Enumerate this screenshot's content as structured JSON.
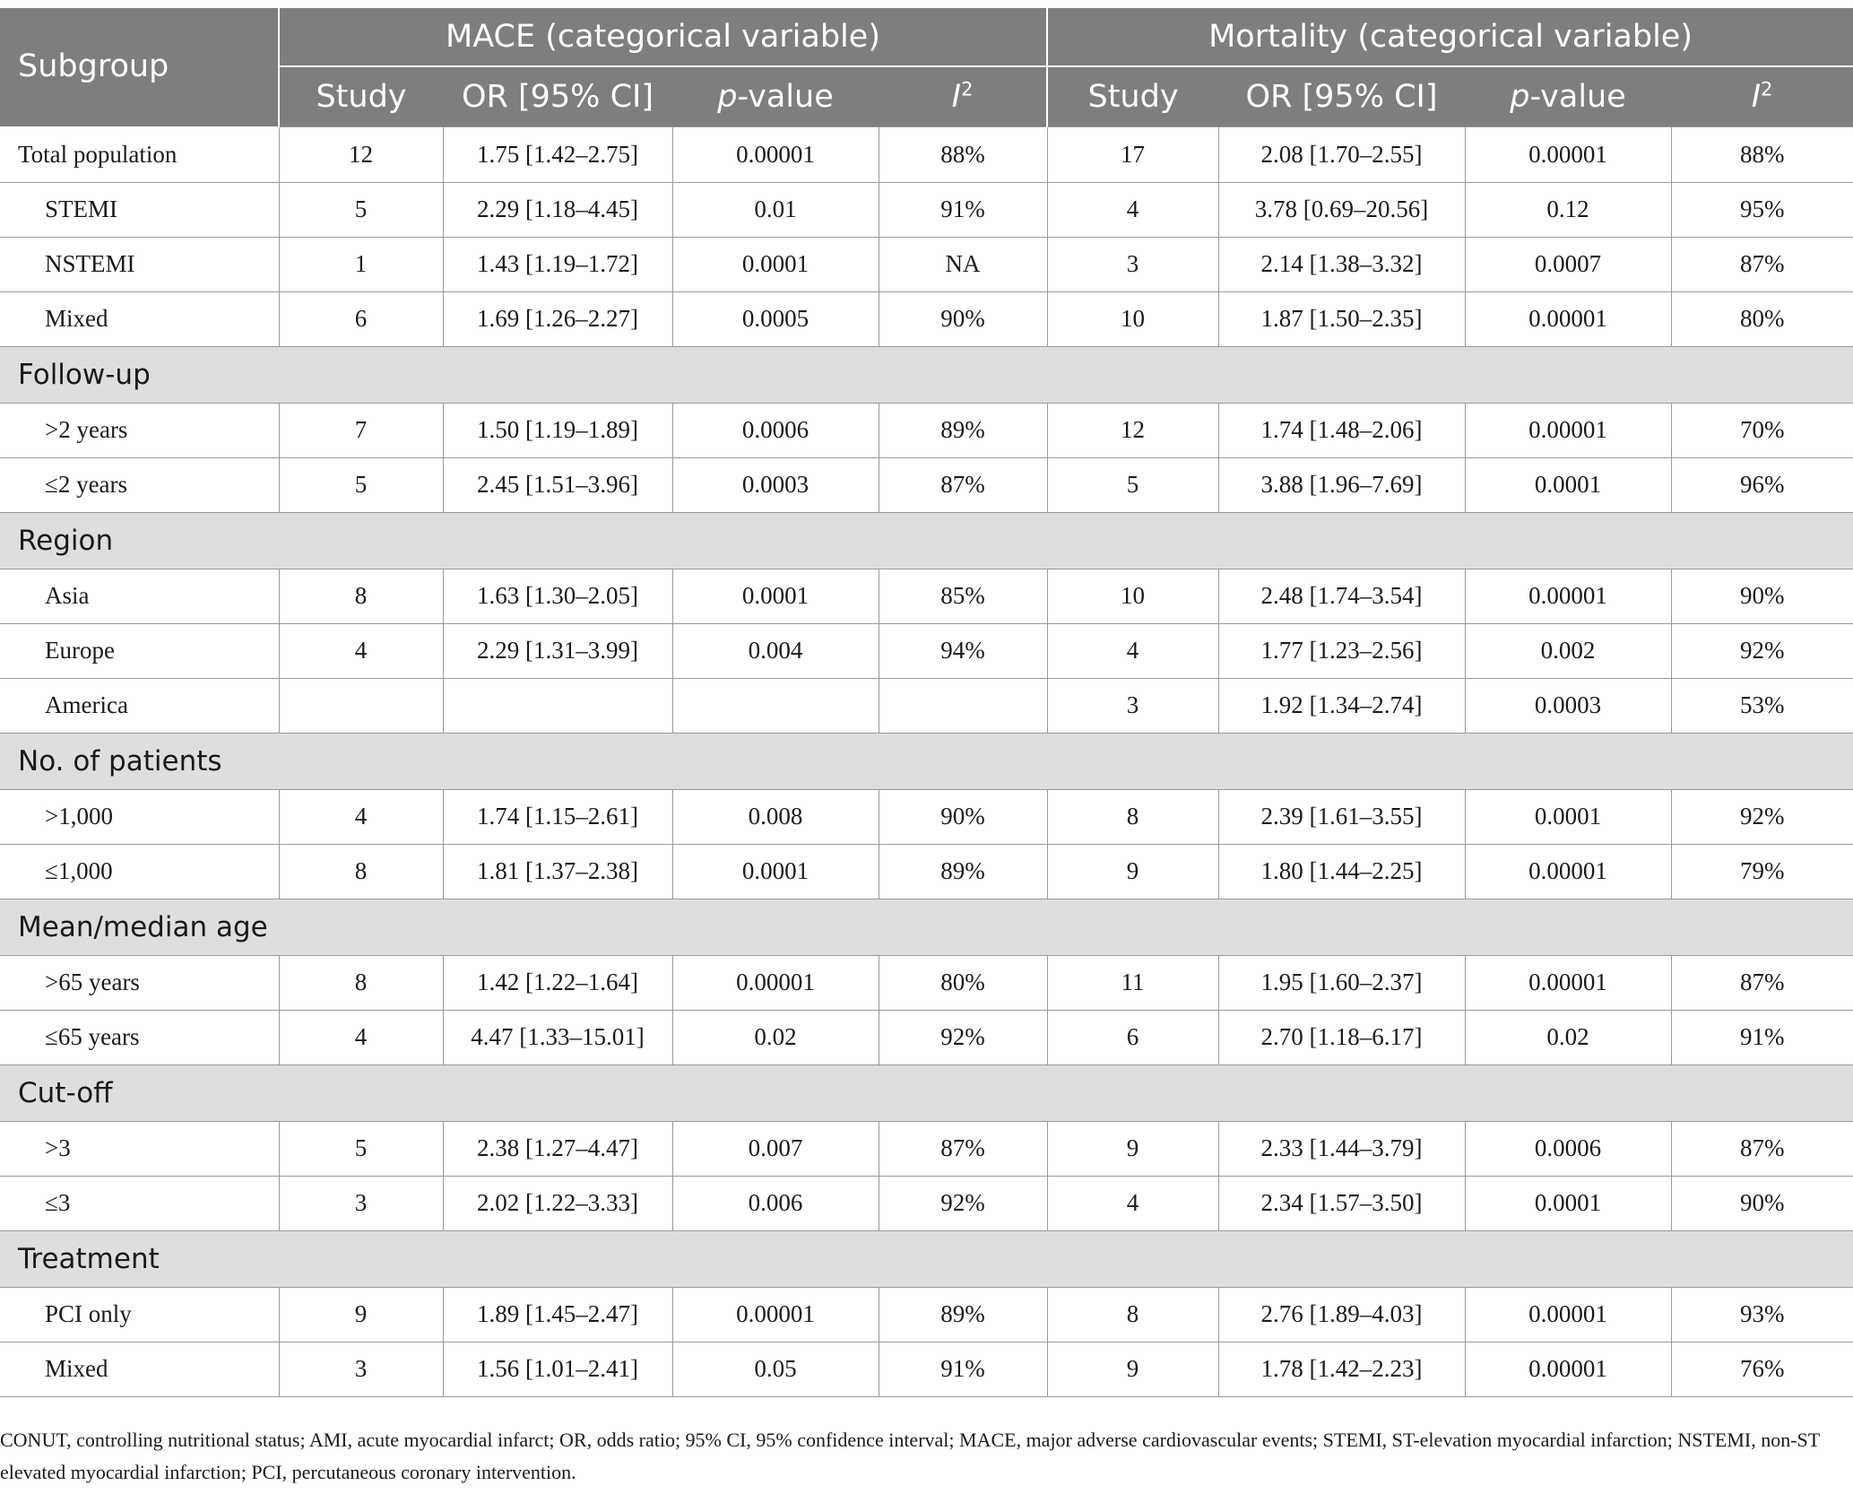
{
  "header": {
    "subgroup": "Subgroup",
    "mace_group": "MACE (categorical variable)",
    "mortality_group": "Mortality (categorical variable)",
    "col_study": "Study",
    "col_or": "OR [95% CI]",
    "col_p_italic": "p",
    "col_p_rest": "-value",
    "col_i_italic": "I",
    "col_i_sup": "2"
  },
  "rows": [
    {
      "type": "data",
      "indent": false,
      "label": "Total population",
      "mace_study": "12",
      "mace_or": "1.75 [1.42–2.75]",
      "mace_p": "0.00001",
      "mace_i2": "88%",
      "mort_study": "17",
      "mort_or": "2.08 [1.70–2.55]",
      "mort_p": "0.00001",
      "mort_i2": "88%"
    },
    {
      "type": "data",
      "indent": true,
      "label": "STEMI",
      "mace_study": "5",
      "mace_or": "2.29 [1.18–4.45]",
      "mace_p": "0.01",
      "mace_i2": "91%",
      "mort_study": "4",
      "mort_or": "3.78 [0.69–20.56]",
      "mort_p": "0.12",
      "mort_i2": "95%"
    },
    {
      "type": "data",
      "indent": true,
      "label": "NSTEMI",
      "mace_study": "1",
      "mace_or": "1.43 [1.19–1.72]",
      "mace_p": "0.0001",
      "mace_i2": "NA",
      "mort_study": "3",
      "mort_or": "2.14 [1.38–3.32]",
      "mort_p": "0.0007",
      "mort_i2": "87%"
    },
    {
      "type": "data",
      "indent": true,
      "label": "Mixed",
      "mace_study": "6",
      "mace_or": "1.69 [1.26–2.27]",
      "mace_p": "0.0005",
      "mace_i2": "90%",
      "mort_study": "10",
      "mort_or": "1.87 [1.50–2.35]",
      "mort_p": "0.00001",
      "mort_i2": "80%"
    },
    {
      "type": "section",
      "label": "Follow-up"
    },
    {
      "type": "data",
      "indent": true,
      "label": ">2 years",
      "mace_study": "7",
      "mace_or": "1.50 [1.19–1.89]",
      "mace_p": "0.0006",
      "mace_i2": "89%",
      "mort_study": "12",
      "mort_or": "1.74 [1.48–2.06]",
      "mort_p": "0.00001",
      "mort_i2": "70%"
    },
    {
      "type": "data",
      "indent": true,
      "label": "≤2 years",
      "mace_study": "5",
      "mace_or": "2.45 [1.51–3.96]",
      "mace_p": "0.0003",
      "mace_i2": "87%",
      "mort_study": "5",
      "mort_or": "3.88 [1.96–7.69]",
      "mort_p": "0.0001",
      "mort_i2": "96%"
    },
    {
      "type": "section",
      "label": "Region"
    },
    {
      "type": "data",
      "indent": true,
      "label": "Asia",
      "mace_study": "8",
      "mace_or": "1.63 [1.30–2.05]",
      "mace_p": "0.0001",
      "mace_i2": "85%",
      "mort_study": "10",
      "mort_or": "2.48 [1.74–3.54]",
      "mort_p": "0.00001",
      "mort_i2": "90%"
    },
    {
      "type": "data",
      "indent": true,
      "label": "Europe",
      "mace_study": "4",
      "mace_or": "2.29 [1.31–3.99]",
      "mace_p": "0.004",
      "mace_i2": "94%",
      "mort_study": "4",
      "mort_or": "1.77 [1.23–2.56]",
      "mort_p": "0.002",
      "mort_i2": "92%"
    },
    {
      "type": "data",
      "indent": true,
      "label": "America",
      "mace_study": "",
      "mace_or": "",
      "mace_p": "",
      "mace_i2": "",
      "mort_study": "3",
      "mort_or": "1.92 [1.34–2.74]",
      "mort_p": "0.0003",
      "mort_i2": "53%"
    },
    {
      "type": "section",
      "label": "No. of patients"
    },
    {
      "type": "data",
      "indent": true,
      "label": ">1,000",
      "mace_study": "4",
      "mace_or": "1.74 [1.15–2.61]",
      "mace_p": "0.008",
      "mace_i2": "90%",
      "mort_study": "8",
      "mort_or": "2.39 [1.61–3.55]",
      "mort_p": "0.0001",
      "mort_i2": "92%"
    },
    {
      "type": "data",
      "indent": true,
      "label": "≤1,000",
      "mace_study": "8",
      "mace_or": "1.81 [1.37–2.38]",
      "mace_p": "0.0001",
      "mace_i2": "89%",
      "mort_study": "9",
      "mort_or": "1.80 [1.44–2.25]",
      "mort_p": "0.00001",
      "mort_i2": "79%"
    },
    {
      "type": "section",
      "label": "Mean/median age"
    },
    {
      "type": "data",
      "indent": true,
      "label": ">65 years",
      "mace_study": "8",
      "mace_or": "1.42 [1.22–1.64]",
      "mace_p": "0.00001",
      "mace_i2": "80%",
      "mort_study": "11",
      "mort_or": "1.95 [1.60–2.37]",
      "mort_p": "0.00001",
      "mort_i2": "87%"
    },
    {
      "type": "data",
      "indent": true,
      "label": "≤65 years",
      "mace_study": "4",
      "mace_or": "4.47 [1.33–15.01]",
      "mace_p": "0.02",
      "mace_i2": "92%",
      "mort_study": "6",
      "mort_or": "2.70 [1.18–6.17]",
      "mort_p": "0.02",
      "mort_i2": "91%"
    },
    {
      "type": "section",
      "label": "Cut-off"
    },
    {
      "type": "data",
      "indent": true,
      "label": ">3",
      "mace_study": "5",
      "mace_or": "2.38 [1.27–4.47]",
      "mace_p": "0.007",
      "mace_i2": "87%",
      "mort_study": "9",
      "mort_or": "2.33 [1.44–3.79]",
      "mort_p": "0.0006",
      "mort_i2": "87%"
    },
    {
      "type": "data",
      "indent": true,
      "label": "≤3",
      "mace_study": "3",
      "mace_or": "2.02 [1.22–3.33]",
      "mace_p": "0.006",
      "mace_i2": "92%",
      "mort_study": "4",
      "mort_or": "2.34 [1.57–3.50]",
      "mort_p": "0.0001",
      "mort_i2": "90%"
    },
    {
      "type": "section",
      "label": "Treatment"
    },
    {
      "type": "data",
      "indent": true,
      "label": "PCI only",
      "mace_study": "9",
      "mace_or": "1.89 [1.45–2.47]",
      "mace_p": "0.00001",
      "mace_i2": "89%",
      "mort_study": "8",
      "mort_or": "2.76 [1.89–4.03]",
      "mort_p": "0.00001",
      "mort_i2": "93%"
    },
    {
      "type": "data",
      "indent": true,
      "label": "Mixed",
      "mace_study": "3",
      "mace_or": "1.56 [1.01–2.41]",
      "mace_p": "0.05",
      "mace_i2": "91%",
      "mort_study": "9",
      "mort_or": "1.78 [1.42–2.23]",
      "mort_p": "0.00001",
      "mort_i2": "76%"
    }
  ],
  "footnote": "CONUT, controlling nutritional status; AMI, acute myocardial infarct; OR, odds ratio; 95% CI, 95% confidence interval; MACE, major adverse cardiovascular events; STEMI, ST-elevation myocardial infarction; NSTEMI, non-ST elevated myocardial infarction; PCI, percutaneous coronary intervention.",
  "colors": {
    "header_bg": "#7d7f7c",
    "section_bg": "#dedede"
  }
}
